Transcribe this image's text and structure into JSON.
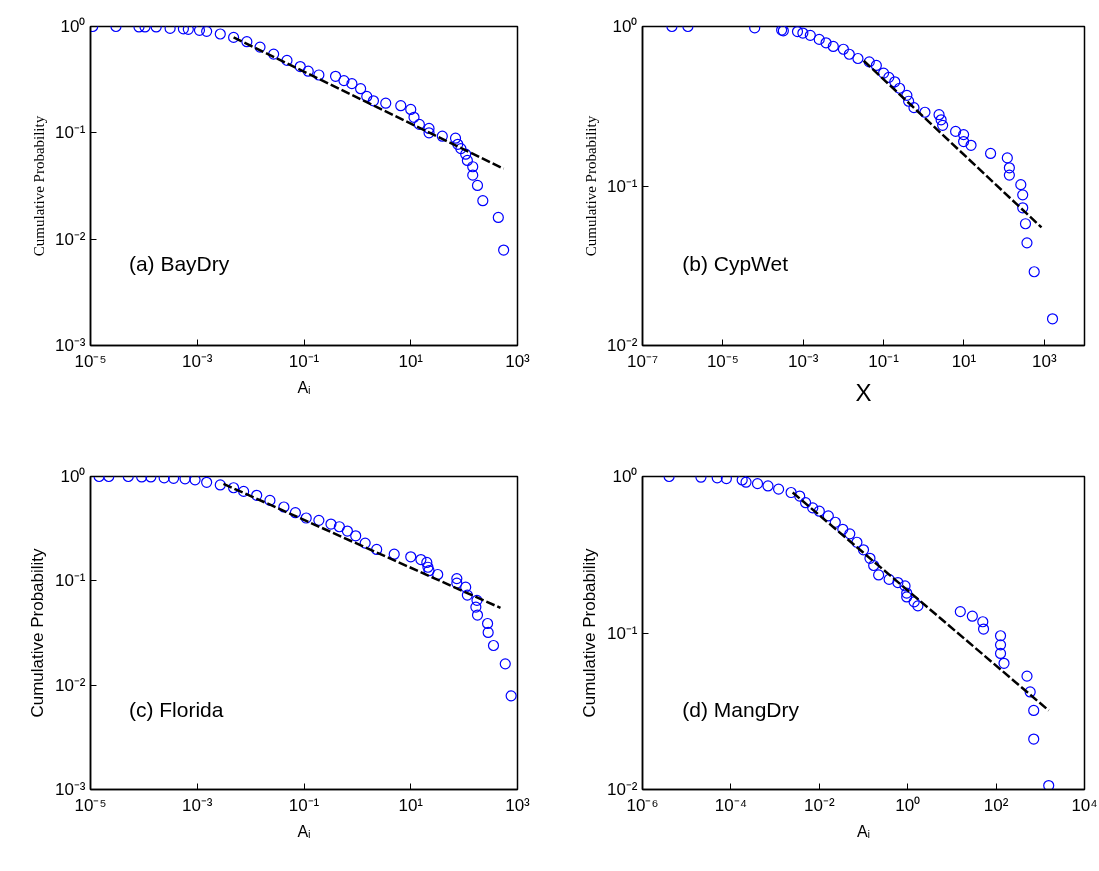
{
  "chart_data": [
    {
      "type": "scatter",
      "xlabel": "Aᵢ",
      "ylabel": "Cumulative Probability",
      "annotations": [
        "(a) BayDry"
      ],
      "log": "xy",
      "grid": false,
      "marker": "circle",
      "xlim": [
        1e-05,
        1000.0
      ],
      "ylim": [
        0.001,
        1
      ],
      "xticks": [
        {
          "value": 1e-05,
          "label": "10⁻⁵"
        },
        {
          "value": 0.001,
          "label": "10⁻³"
        },
        {
          "value": 0.1,
          "label": "10⁻¹"
        },
        {
          "value": 10,
          "label": "10¹"
        },
        {
          "value": 1000,
          "label": "10³"
        }
      ],
      "yticks": [
        {
          "value": 0.001,
          "label": "10⁻³"
        },
        {
          "value": 0.01,
          "label": "10⁻²"
        },
        {
          "value": 0.1,
          "label": "10⁻¹"
        },
        {
          "value": 1,
          "label": "10⁰"
        }
      ],
      "series": [
        {
          "color": "#0000ff",
          "x": [
            1.1e-05,
            3e-05,
            8.1e-05,
            0.000105,
            0.00017,
            0.00031,
            0.00055,
            0.00068,
            0.0011,
            0.0015,
            0.0027,
            0.0048,
            0.0085,
            0.015,
            0.027,
            0.048,
            0.085,
            0.12,
            0.19,
            0.39,
            0.56,
            0.79,
            1.15,
            1.5,
            2.0,
            3.4,
            6.5,
            10,
            11.5,
            14.5,
            22,
            22,
            39,
            69,
            76,
            87,
            107,
            115,
            145,
            145,
            178,
            224,
            437,
            550
          ],
          "values": [
            1,
            1,
            0.99,
            0.99,
            0.99,
            0.96,
            0.95,
            0.94,
            0.92,
            0.9,
            0.85,
            0.79,
            0.72,
            0.64,
            0.55,
            0.48,
            0.42,
            0.38,
            0.35,
            0.34,
            0.31,
            0.29,
            0.26,
            0.22,
            0.2,
            0.19,
            0.18,
            0.166,
            0.14,
            0.12,
            0.11,
            0.1,
            0.093,
            0.089,
            0.078,
            0.071,
            0.063,
            0.055,
            0.048,
            0.04,
            0.032,
            0.023,
            0.016,
            0.0079
          ]
        },
        {
          "type": "line",
          "color": "#000000",
          "line_style": "dashed",
          "marker": "none",
          "x": [
            0.0048,
            550
          ],
          "values": [
            0.79,
            0.046
          ]
        }
      ]
    },
    {
      "type": "scatter",
      "xlabel": "X",
      "ylabel": "Cumulative Probability",
      "annotations": [
        "(b) CypWet"
      ],
      "log": "xy",
      "grid": false,
      "marker": "circle",
      "xlim": [
        1e-07,
        10000.0
      ],
      "ylim": [
        0.01,
        1
      ],
      "xticks": [
        {
          "value": 1e-07,
          "label": "10⁻⁷"
        },
        {
          "value": 1e-05,
          "label": "10⁻⁵"
        },
        {
          "value": 0.001,
          "label": "10⁻³"
        },
        {
          "value": 0.1,
          "label": "10⁻¹"
        },
        {
          "value": 10,
          "label": "10¹"
        },
        {
          "value": 1000,
          "label": "10³"
        }
      ],
      "yticks": [
        {
          "value": 0.01,
          "label": "10⁻²"
        },
        {
          "value": 0.1,
          "label": "10⁻¹"
        },
        {
          "value": 1,
          "label": "10⁰"
        }
      ],
      "series": [
        {
          "color": "#0000ff",
          "x": [
            5.4e-07,
            1.35e-06,
            6.2e-05,
            0.00029,
            0.00032,
            0.00072,
            0.00098,
            0.0015,
            0.0025,
            0.0037,
            0.0056,
            0.01,
            0.014,
            0.023,
            0.044,
            0.066,
            0.1,
            0.135,
            0.19,
            0.25,
            0.38,
            0.42,
            0.57,
            1.07,
            2.4,
            2.7,
            2.95,
            6.2,
            9.8,
            9.8,
            15,
            46,
            120,
            135,
            135,
            260,
            290,
            290,
            340,
            370,
            560,
            1600
          ],
          "values": [
            1,
            1,
            0.98,
            0.95,
            0.94,
            0.93,
            0.91,
            0.88,
            0.83,
            0.79,
            0.75,
            0.72,
            0.67,
            0.63,
            0.6,
            0.57,
            0.51,
            0.48,
            0.45,
            0.41,
            0.37,
            0.34,
            0.31,
            0.29,
            0.28,
            0.26,
            0.24,
            0.22,
            0.21,
            0.19,
            0.18,
            0.16,
            0.15,
            0.13,
            0.117,
            0.102,
            0.088,
            0.073,
            0.058,
            0.044,
            0.029,
            0.0147
          ]
        },
        {
          "type": "line",
          "color": "#000000",
          "line_style": "dashed",
          "marker": "none",
          "x": [
            0.032,
            850
          ],
          "values": [
            0.61,
            0.055
          ]
        }
      ]
    },
    {
      "type": "scatter",
      "xlabel": "Aᵢ",
      "ylabel": "Cumulative Probability",
      "annotations": [
        "(c) Florida"
      ],
      "log": "xy",
      "grid": false,
      "marker": "circle",
      "xlim": [
        1e-05,
        1000.0
      ],
      "ylim": [
        0.001,
        1
      ],
      "xticks": [
        {
          "value": 1e-05,
          "label": "10⁻⁵"
        },
        {
          "value": 0.001,
          "label": "10⁻³"
        },
        {
          "value": 0.1,
          "label": "10⁻¹"
        },
        {
          "value": 10,
          "label": "10¹"
        },
        {
          "value": 1000,
          "label": "10³"
        }
      ],
      "yticks": [
        {
          "value": 0.001,
          "label": "10⁻³"
        },
        {
          "value": 0.01,
          "label": "10⁻²"
        },
        {
          "value": 0.1,
          "label": "10⁻¹"
        },
        {
          "value": 1,
          "label": "10⁰"
        }
      ],
      "series": [
        {
          "color": "#0000ff",
          "x": [
            1.45e-05,
            2.2e-05,
            5.1e-05,
            9.1e-05,
            0.000135,
            0.00024,
            0.00036,
            0.00059,
            0.00091,
            0.0015,
            0.0027,
            0.0048,
            0.0074,
            0.013,
            0.023,
            0.042,
            0.069,
            0.11,
            0.19,
            0.32,
            0.46,
            0.65,
            0.93,
            1.4,
            2.3,
            4.9,
            10,
            15.5,
            20,
            21,
            22,
            32,
            73,
            73,
            107,
            115,
            174,
            166,
            178,
            275,
            282,
            355,
            590,
            760
          ],
          "values": [
            1,
            1,
            1,
            0.99,
            0.99,
            0.97,
            0.96,
            0.95,
            0.93,
            0.88,
            0.83,
            0.78,
            0.72,
            0.66,
            0.59,
            0.51,
            0.45,
            0.4,
            0.38,
            0.35,
            0.33,
            0.3,
            0.27,
            0.23,
            0.2,
            0.18,
            0.17,
            0.16,
            0.15,
            0.135,
            0.125,
            0.115,
            0.105,
            0.095,
            0.087,
            0.073,
            0.065,
            0.056,
            0.047,
            0.039,
            0.032,
            0.024,
            0.016,
            0.0079
          ]
        },
        {
          "type": "line",
          "color": "#000000",
          "line_style": "dashed",
          "marker": "none",
          "x": [
            0.0031,
            480
          ],
          "values": [
            0.85,
            0.055
          ]
        }
      ]
    },
    {
      "type": "scatter",
      "xlabel": "Aᵢ",
      "ylabel": "Cumulative Probability",
      "annotations": [
        "(d) MangDry"
      ],
      "log": "xy",
      "grid": false,
      "marker": "circle",
      "xlim": [
        1e-06,
        10000.0
      ],
      "ylim": [
        0.01,
        1
      ],
      "xticks": [
        {
          "value": 1e-06,
          "label": "10⁻⁶"
        },
        {
          "value": 0.0001,
          "label": "10⁻⁴"
        },
        {
          "value": 0.01,
          "label": "10⁻²"
        },
        {
          "value": 1,
          "label": "10⁰"
        },
        {
          "value": 100,
          "label": "10²"
        },
        {
          "value": 10000,
          "label": "10⁴"
        }
      ],
      "yticks": [
        {
          "value": 0.01,
          "label": "10⁻²"
        },
        {
          "value": 0.1,
          "label": "10⁻¹"
        },
        {
          "value": 1,
          "label": "10⁰"
        }
      ],
      "series": [
        {
          "color": "#0000ff",
          "x": [
            4e-06,
            2.1e-05,
            4.9e-05,
            7.9e-05,
            0.00018,
            0.00022,
            0.0004,
            0.00069,
            0.0012,
            0.0023,
            0.0036,
            0.0049,
            0.0071,
            0.01,
            0.016,
            0.023,
            0.034,
            0.049,
            0.071,
            0.1,
            0.14,
            0.17,
            0.22,
            0.38,
            0.6,
            0.87,
            0.95,
            0.95,
            1.4,
            1.7,
            15.5,
            29,
            50,
            52,
            126,
            126,
            126,
            151,
            500,
            590,
            710,
            710,
            1550
          ],
          "values": [
            1,
            0.99,
            0.98,
            0.97,
            0.95,
            0.92,
            0.9,
            0.87,
            0.83,
            0.79,
            0.75,
            0.68,
            0.63,
            0.6,
            0.56,
            0.51,
            0.46,
            0.43,
            0.38,
            0.34,
            0.3,
            0.27,
            0.235,
            0.22,
            0.21,
            0.2,
            0.18,
            0.17,
            0.158,
            0.149,
            0.137,
            0.128,
            0.118,
            0.106,
            0.096,
            0.084,
            0.074,
            0.064,
            0.053,
            0.042,
            0.032,
            0.021,
            0.0106
          ]
        },
        {
          "type": "line",
          "color": "#000000",
          "line_style": "dashed",
          "marker": "none",
          "x": [
            0.0025,
            1550
          ],
          "values": [
            0.79,
            0.032
          ]
        }
      ]
    }
  ]
}
